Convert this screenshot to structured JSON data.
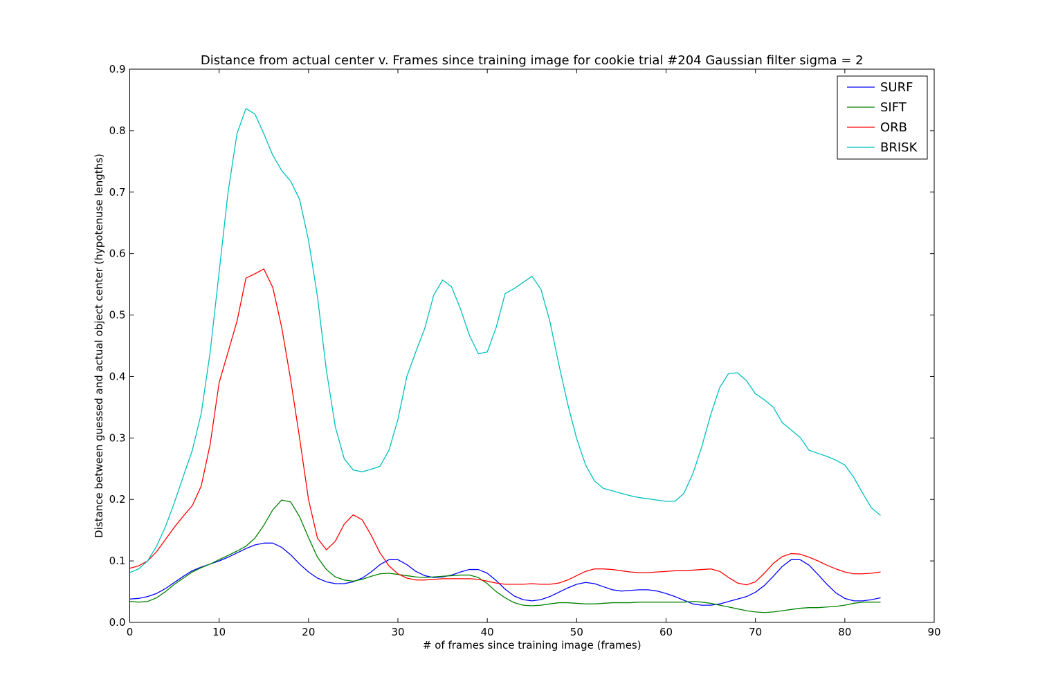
{
  "chart_data": {
    "type": "line",
    "title": "Distance from actual center v. Frames since training image for cookie trial #204 Gaussian filter sigma = 2",
    "xlabel": "# of frames since training image (frames)",
    "ylabel": "Distance between guessed and actual object center (hypotenuse lengths)",
    "xlim": [
      0,
      90
    ],
    "ylim": [
      0,
      0.9
    ],
    "x_ticks": [
      0,
      10,
      20,
      30,
      40,
      50,
      60,
      70,
      80,
      90
    ],
    "x_tick_labels": [
      "0",
      "10",
      "20",
      "30",
      "40",
      "50",
      "60",
      "70",
      "80",
      "90"
    ],
    "y_ticks": [
      0,
      0.1,
      0.2,
      0.3,
      0.4,
      0.5,
      0.6,
      0.7,
      0.8,
      0.9
    ],
    "y_tick_labels": [
      "0.0",
      "0.1",
      "0.2",
      "0.3",
      "0.4",
      "0.5",
      "0.6",
      "0.7",
      "0.8",
      "0.9"
    ],
    "grid": false,
    "legend_position": "top-right",
    "x": [
      0,
      1,
      2,
      3,
      4,
      5,
      6,
      7,
      8,
      9,
      10,
      11,
      12,
      13,
      14,
      15,
      16,
      17,
      18,
      19,
      20,
      21,
      22,
      23,
      24,
      25,
      26,
      27,
      28,
      29,
      30,
      31,
      32,
      33,
      34,
      35,
      36,
      37,
      38,
      39,
      40,
      41,
      42,
      43,
      44,
      45,
      46,
      47,
      48,
      49,
      50,
      51,
      52,
      53,
      54,
      55,
      56,
      57,
      58,
      59,
      60,
      61,
      62,
      63,
      64,
      65,
      66,
      67,
      68,
      69,
      70,
      71,
      72,
      73,
      74,
      75,
      76,
      77,
      78,
      79,
      80,
      81,
      82,
      83,
      84
    ],
    "series": [
      {
        "name": "SURF",
        "color": "#0000ff",
        "values": [
          0.038,
          0.039,
          0.042,
          0.047,
          0.055,
          0.065,
          0.075,
          0.084,
          0.09,
          0.095,
          0.1,
          0.106,
          0.113,
          0.12,
          0.126,
          0.129,
          0.129,
          0.122,
          0.11,
          0.095,
          0.082,
          0.072,
          0.066,
          0.063,
          0.063,
          0.066,
          0.072,
          0.082,
          0.094,
          0.102,
          0.102,
          0.094,
          0.083,
          0.076,
          0.073,
          0.074,
          0.077,
          0.082,
          0.086,
          0.086,
          0.08,
          0.068,
          0.054,
          0.043,
          0.037,
          0.035,
          0.037,
          0.042,
          0.049,
          0.056,
          0.062,
          0.065,
          0.063,
          0.058,
          0.053,
          0.051,
          0.052,
          0.053,
          0.053,
          0.051,
          0.047,
          0.042,
          0.036,
          0.03,
          0.028,
          0.028,
          0.03,
          0.034,
          0.038,
          0.042,
          0.049,
          0.06,
          0.075,
          0.091,
          0.102,
          0.102,
          0.093,
          0.078,
          0.062,
          0.048,
          0.039,
          0.035,
          0.035,
          0.037,
          0.04
        ]
      },
      {
        "name": "SIFT",
        "color": "#008000",
        "values": [
          0.034,
          0.033,
          0.034,
          0.04,
          0.05,
          0.062,
          0.072,
          0.082,
          0.089,
          0.095,
          0.102,
          0.109,
          0.116,
          0.124,
          0.137,
          0.158,
          0.183,
          0.199,
          0.196,
          0.172,
          0.138,
          0.106,
          0.086,
          0.074,
          0.069,
          0.067,
          0.07,
          0.075,
          0.079,
          0.08,
          0.078,
          0.076,
          0.074,
          0.073,
          0.074,
          0.075,
          0.076,
          0.077,
          0.077,
          0.073,
          0.063,
          0.05,
          0.04,
          0.032,
          0.028,
          0.027,
          0.028,
          0.03,
          0.032,
          0.032,
          0.031,
          0.03,
          0.03,
          0.031,
          0.032,
          0.032,
          0.032,
          0.033,
          0.033,
          0.033,
          0.033,
          0.033,
          0.033,
          0.034,
          0.033,
          0.031,
          0.028,
          0.025,
          0.022,
          0.019,
          0.017,
          0.016,
          0.017,
          0.019,
          0.021,
          0.023,
          0.024,
          0.024,
          0.025,
          0.026,
          0.028,
          0.031,
          0.033,
          0.033,
          0.033
        ]
      },
      {
        "name": "ORB",
        "color": "#ff0000",
        "values": [
          0.088,
          0.092,
          0.1,
          0.115,
          0.135,
          0.155,
          0.173,
          0.19,
          0.222,
          0.29,
          0.39,
          0.44,
          0.49,
          0.56,
          0.567,
          0.575,
          0.545,
          0.48,
          0.395,
          0.3,
          0.2,
          0.137,
          0.118,
          0.132,
          0.16,
          0.175,
          0.167,
          0.142,
          0.113,
          0.092,
          0.079,
          0.072,
          0.069,
          0.069,
          0.07,
          0.071,
          0.071,
          0.071,
          0.071,
          0.07,
          0.067,
          0.064,
          0.062,
          0.062,
          0.062,
          0.063,
          0.062,
          0.062,
          0.064,
          0.069,
          0.076,
          0.083,
          0.087,
          0.087,
          0.086,
          0.084,
          0.082,
          0.081,
          0.081,
          0.082,
          0.083,
          0.084,
          0.084,
          0.085,
          0.086,
          0.087,
          0.083,
          0.073,
          0.064,
          0.061,
          0.066,
          0.08,
          0.096,
          0.107,
          0.112,
          0.111,
          0.106,
          0.1,
          0.093,
          0.087,
          0.082,
          0.079,
          0.079,
          0.08,
          0.082
        ]
      },
      {
        "name": "BRISK",
        "color": "#00bfbf",
        "values": [
          0.081,
          0.087,
          0.1,
          0.124,
          0.156,
          0.195,
          0.238,
          0.28,
          0.34,
          0.44,
          0.57,
          0.7,
          0.795,
          0.836,
          0.827,
          0.795,
          0.76,
          0.735,
          0.718,
          0.688,
          0.622,
          0.53,
          0.41,
          0.318,
          0.266,
          0.248,
          0.245,
          0.249,
          0.254,
          0.28,
          0.33,
          0.4,
          0.44,
          0.478,
          0.532,
          0.557,
          0.546,
          0.51,
          0.467,
          0.437,
          0.44,
          0.48,
          0.535,
          0.543,
          0.553,
          0.563,
          0.542,
          0.49,
          0.42,
          0.355,
          0.299,
          0.256,
          0.23,
          0.218,
          0.214,
          0.21,
          0.206,
          0.203,
          0.201,
          0.199,
          0.197,
          0.197,
          0.21,
          0.242,
          0.286,
          0.338,
          0.382,
          0.405,
          0.406,
          0.393,
          0.372,
          0.362,
          0.35,
          0.325,
          0.313,
          0.301,
          0.28,
          0.275,
          0.27,
          0.264,
          0.256,
          0.236,
          0.21,
          0.186,
          0.174
        ]
      }
    ]
  }
}
